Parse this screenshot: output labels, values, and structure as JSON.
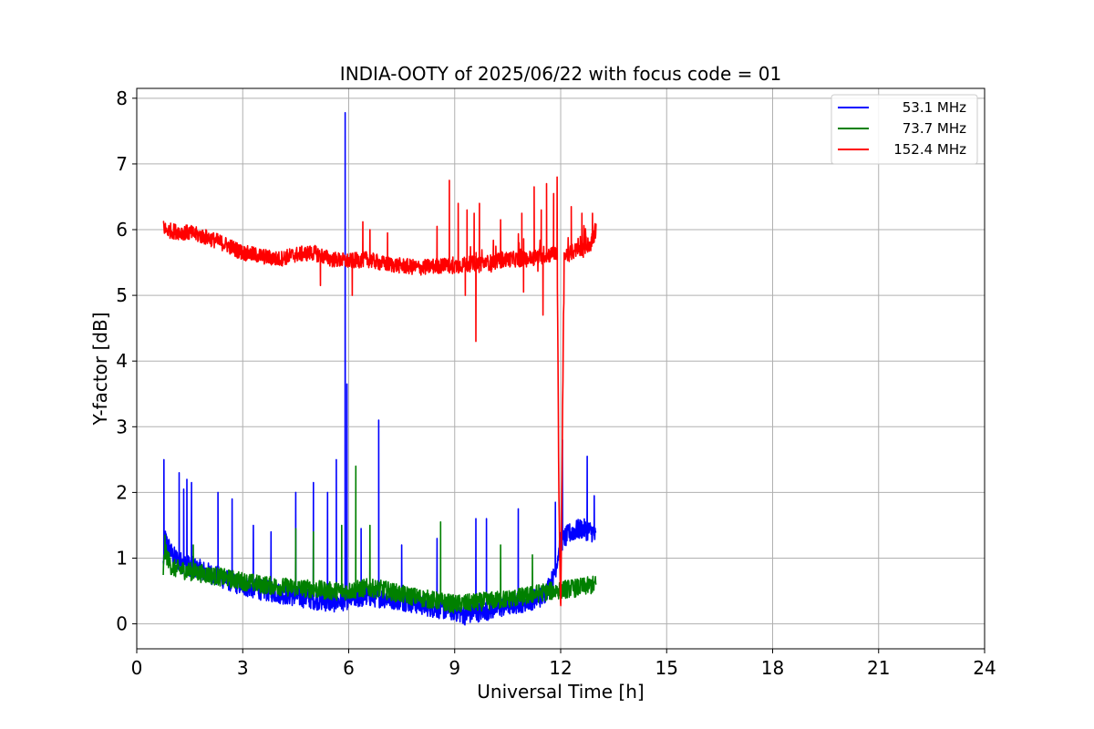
{
  "chart_data": {
    "type": "line",
    "title": "INDIA-OOTY of 2025/06/22 with focus code = 01",
    "xlabel": "Universal Time [h]",
    "ylabel": "Y-factor [dB]",
    "xlim": [
      0,
      24
    ],
    "ylim": [
      -0.38,
      8.15
    ],
    "xticks": [
      0,
      3,
      6,
      9,
      12,
      15,
      18,
      21,
      24
    ],
    "yticks": [
      0,
      1,
      2,
      3,
      4,
      5,
      6,
      7,
      8
    ],
    "grid": true,
    "legend_position": "top-right",
    "series": [
      {
        "name": "53.1 MHz",
        "color": "#0000ff",
        "x": [
          0.75,
          0.8,
          1.0,
          1.2,
          1.5,
          2.0,
          2.5,
          3.0,
          3.5,
          4.0,
          4.5,
          5.0,
          5.5,
          5.8,
          6.0,
          6.5,
          7.0,
          7.5,
          8.0,
          8.5,
          9.0,
          9.3,
          9.6,
          10.0,
          10.5,
          11.0,
          11.5,
          11.8,
          12.0,
          12.3,
          12.6,
          12.9,
          13.0
        ],
        "y": [
          0.9,
          1.3,
          1.05,
          0.95,
          0.88,
          0.78,
          0.68,
          0.58,
          0.52,
          0.47,
          0.42,
          0.38,
          0.33,
          0.35,
          0.38,
          0.42,
          0.4,
          0.36,
          0.3,
          0.24,
          0.2,
          0.14,
          0.18,
          0.22,
          0.28,
          0.34,
          0.42,
          0.7,
          1.25,
          1.4,
          1.45,
          1.4,
          1.3
        ],
        "spikes": [
          {
            "x": 0.77,
            "y": 2.5
          },
          {
            "x": 1.2,
            "y": 2.3
          },
          {
            "x": 1.33,
            "y": 2.05
          },
          {
            "x": 1.42,
            "y": 2.2
          },
          {
            "x": 1.55,
            "y": 2.15
          },
          {
            "x": 2.3,
            "y": 2.0
          },
          {
            "x": 2.7,
            "y": 1.9
          },
          {
            "x": 3.3,
            "y": 1.5
          },
          {
            "x": 3.8,
            "y": 1.4
          },
          {
            "x": 4.5,
            "y": 2.0
          },
          {
            "x": 5.0,
            "y": 2.15
          },
          {
            "x": 5.4,
            "y": 2.0
          },
          {
            "x": 5.65,
            "y": 2.5
          },
          {
            "x": 5.9,
            "y": 7.78
          },
          {
            "x": 5.95,
            "y": 3.65
          },
          {
            "x": 6.35,
            "y": 1.45
          },
          {
            "x": 6.85,
            "y": 3.1
          },
          {
            "x": 7.5,
            "y": 1.2
          },
          {
            "x": 8.5,
            "y": 1.3
          },
          {
            "x": 9.6,
            "y": 1.6
          },
          {
            "x": 9.9,
            "y": 1.6
          },
          {
            "x": 10.8,
            "y": 1.75
          },
          {
            "x": 11.85,
            "y": 1.85
          },
          {
            "x": 12.05,
            "y": 2.8
          },
          {
            "x": 12.75,
            "y": 2.55
          },
          {
            "x": 12.95,
            "y": 1.95
          }
        ]
      },
      {
        "name": "73.7 MHz",
        "color": "#008000",
        "x": [
          0.75,
          0.8,
          1.0,
          1.5,
          2.0,
          2.5,
          3.0,
          3.5,
          4.0,
          4.5,
          5.0,
          5.5,
          6.0,
          6.5,
          7.0,
          7.5,
          8.0,
          8.5,
          9.0,
          9.5,
          10.0,
          10.5,
          11.0,
          11.5,
          12.0,
          12.5,
          13.0
        ],
        "y": [
          0.8,
          1.1,
          0.85,
          0.8,
          0.75,
          0.7,
          0.65,
          0.6,
          0.57,
          0.55,
          0.53,
          0.5,
          0.5,
          0.55,
          0.52,
          0.45,
          0.4,
          0.35,
          0.3,
          0.32,
          0.35,
          0.38,
          0.42,
          0.48,
          0.52,
          0.55,
          0.6
        ],
        "spikes": [
          {
            "x": 0.8,
            "y": 1.35
          },
          {
            "x": 1.6,
            "y": 1.2
          },
          {
            "x": 4.5,
            "y": 1.45
          },
          {
            "x": 5.0,
            "y": 1.4
          },
          {
            "x": 5.8,
            "y": 1.5
          },
          {
            "x": 6.2,
            "y": 2.4
          },
          {
            "x": 6.6,
            "y": 1.5
          },
          {
            "x": 8.6,
            "y": 1.55
          },
          {
            "x": 10.3,
            "y": 1.2
          },
          {
            "x": 11.2,
            "y": 1.05
          }
        ]
      },
      {
        "name": "152.4 MHz",
        "color": "#ff0000",
        "x": [
          0.75,
          0.8,
          1.0,
          1.5,
          2.0,
          2.5,
          3.0,
          3.5,
          4.0,
          4.5,
          5.0,
          5.5,
          6.0,
          6.5,
          7.0,
          7.5,
          8.0,
          8.5,
          9.0,
          9.5,
          10.0,
          10.5,
          11.0,
          11.5,
          11.9,
          11.95,
          12.0,
          12.05,
          12.1,
          12.5,
          12.9,
          13.0
        ],
        "y": [
          6.1,
          6.0,
          5.98,
          5.95,
          5.88,
          5.78,
          5.65,
          5.6,
          5.55,
          5.62,
          5.65,
          5.55,
          5.52,
          5.55,
          5.48,
          5.45,
          5.42,
          5.45,
          5.45,
          5.48,
          5.5,
          5.55,
          5.55,
          5.6,
          5.65,
          2.0,
          0.02,
          3.0,
          5.6,
          5.7,
          5.8,
          6.0
        ],
        "spikes": [
          {
            "x": 6.4,
            "y": 6.12
          },
          {
            "x": 6.6,
            "y": 6.0
          },
          {
            "x": 7.1,
            "y": 5.95
          },
          {
            "x": 8.5,
            "y": 6.05
          },
          {
            "x": 8.85,
            "y": 6.75
          },
          {
            "x": 9.1,
            "y": 6.4
          },
          {
            "x": 9.35,
            "y": 6.3
          },
          {
            "x": 9.55,
            "y": 6.25
          },
          {
            "x": 9.7,
            "y": 6.4
          },
          {
            "x": 10.3,
            "y": 6.15
          },
          {
            "x": 10.9,
            "y": 6.25
          },
          {
            "x": 11.25,
            "y": 6.65
          },
          {
            "x": 11.45,
            "y": 6.3
          },
          {
            "x": 11.6,
            "y": 6.7
          },
          {
            "x": 11.8,
            "y": 6.55
          },
          {
            "x": 11.9,
            "y": 6.8
          },
          {
            "x": 12.3,
            "y": 6.35
          },
          {
            "x": 12.6,
            "y": 6.25
          },
          {
            "x": 12.9,
            "y": 6.25
          }
        ],
        "dips": [
          {
            "x": 5.2,
            "y": 5.15
          },
          {
            "x": 6.1,
            "y": 5.0
          },
          {
            "x": 9.3,
            "y": 5.0
          },
          {
            "x": 9.6,
            "y": 4.3
          },
          {
            "x": 10.95,
            "y": 5.05
          },
          {
            "x": 11.5,
            "y": 4.7
          }
        ]
      }
    ]
  }
}
